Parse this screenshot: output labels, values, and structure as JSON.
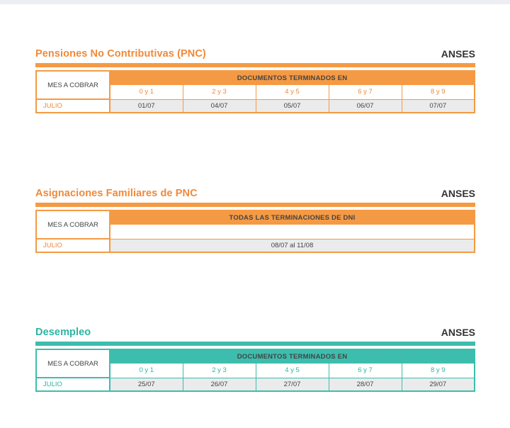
{
  "brand": "ANSES",
  "colors": {
    "orange": "#f59a44",
    "teal": "#3dbdad",
    "cell_gray": "#ebebeb"
  },
  "pnc": {
    "title": "Pensiones No Contributivas (PNC)",
    "brand": "ANSES",
    "mes_label": "MES A COBRAR",
    "header": "DOCUMENTOS TERMINADOS EN",
    "terminations": [
      "0 y 1",
      "2 y 3",
      "4 y 5",
      "6 y 7",
      "8 y 9"
    ],
    "month": "JULIO",
    "dates": [
      "01/07",
      "04/07",
      "05/07",
      "06/07",
      "07/07"
    ]
  },
  "asignaciones": {
    "title": "Asignaciones Familiares de PNC",
    "brand": "ANSES",
    "mes_label": "MES A COBRAR",
    "header": "TODAS LAS TERMINACIONES DE DNI",
    "month": "JULIO",
    "range": "08/07 al 11/08"
  },
  "desempleo": {
    "title": "Desempleo",
    "brand": "ANSES",
    "mes_label": "MES A COBRAR",
    "header": "DOCUMENTOS TERMINADOS EN",
    "terminations": [
      "0 y 1",
      "2 y 3",
      "4 y 5",
      "6 y 7",
      "8 y 9"
    ],
    "month": "JULIO",
    "dates": [
      "25/07",
      "26/07",
      "27/07",
      "28/07",
      "29/07"
    ]
  }
}
